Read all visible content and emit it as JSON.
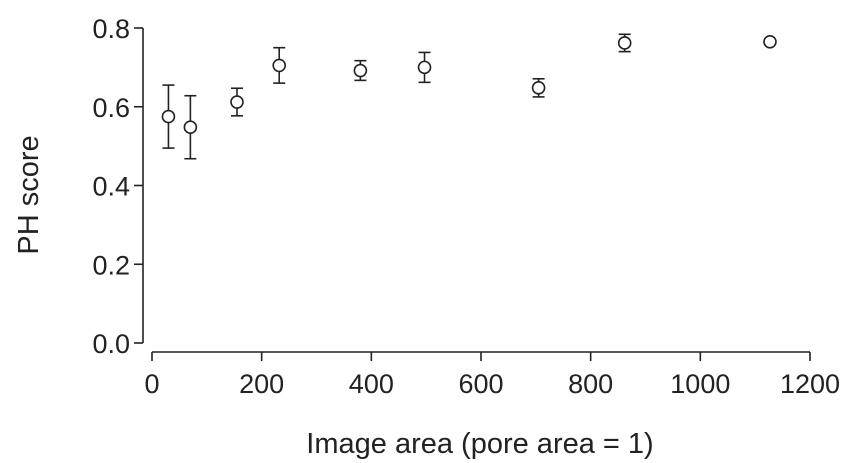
{
  "chart_data": {
    "type": "scatter",
    "xlabel": "Image area (pore area = 1)",
    "ylabel": "PH score",
    "xlim": [
      0,
      1200
    ],
    "ylim": [
      0,
      0.8
    ],
    "x_ticks": [
      0,
      200,
      400,
      600,
      800,
      1000,
      1200
    ],
    "y_ticks": [
      0.0,
      0.2,
      0.4,
      0.6,
      0.8
    ],
    "x_tick_labels": [
      "0",
      "200",
      "400",
      "600",
      "800",
      "1000",
      "1200"
    ],
    "y_tick_labels": [
      "0.0",
      "0.2",
      "0.4",
      "0.6",
      "0.8"
    ],
    "grid": false,
    "legend": "none",
    "points": [
      {
        "x": 30,
        "y": 0.575,
        "err": 0.08
      },
      {
        "x": 70,
        "y": 0.548,
        "err": 0.08
      },
      {
        "x": 155,
        "y": 0.612,
        "err": 0.035
      },
      {
        "x": 232,
        "y": 0.705,
        "err": 0.045
      },
      {
        "x": 380,
        "y": 0.692,
        "err": 0.025
      },
      {
        "x": 497,
        "y": 0.7,
        "err": 0.038
      },
      {
        "x": 705,
        "y": 0.648,
        "err": 0.023
      },
      {
        "x": 862,
        "y": 0.762,
        "err": 0.022
      },
      {
        "x": 1127,
        "y": 0.765,
        "err": 0.0
      }
    ],
    "colors": {
      "axis": "#222222",
      "marker_fill": "#ffffff",
      "marker_stroke": "#222222"
    }
  }
}
